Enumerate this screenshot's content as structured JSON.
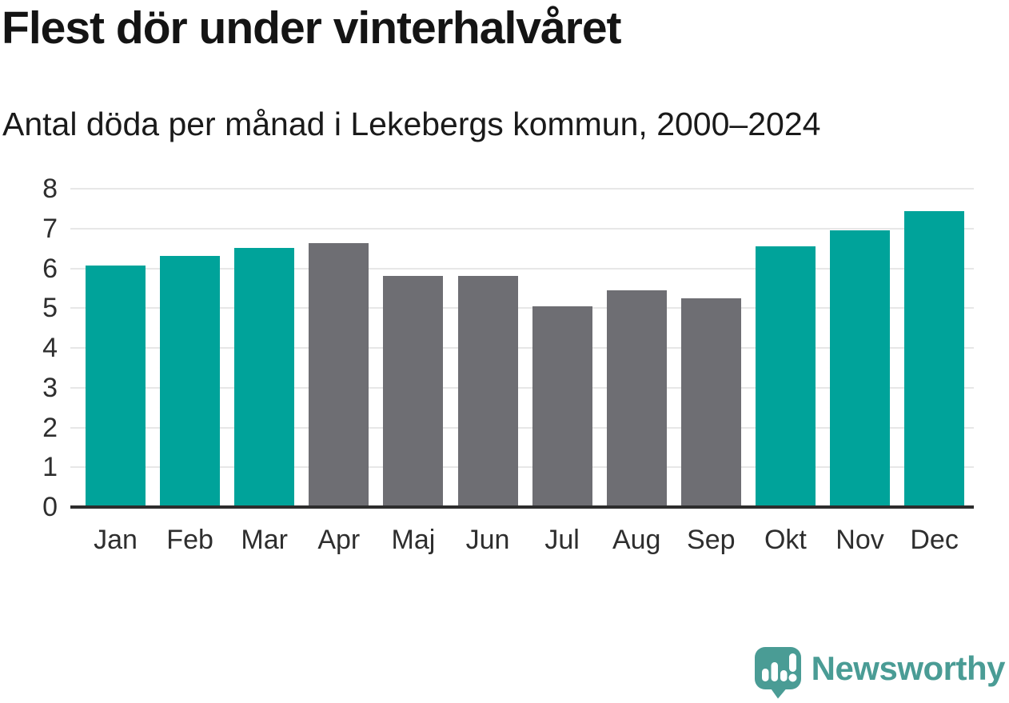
{
  "chart_data": {
    "type": "bar",
    "title": "Flest dör under vinterhalvåret",
    "subtitle": "Antal döda per månad i Lekebergs kommun, 2000–2024",
    "categories": [
      "Jan",
      "Feb",
      "Mar",
      "Apr",
      "Maj",
      "Jun",
      "Jul",
      "Aug",
      "Sep",
      "Okt",
      "Nov",
      "Dec"
    ],
    "values": [
      6.08,
      6.32,
      6.52,
      6.64,
      5.8,
      5.8,
      5.04,
      5.44,
      5.24,
      6.56,
      6.96,
      7.44
    ],
    "bar_groups": [
      "winter",
      "winter",
      "winter",
      "summer",
      "summer",
      "summer",
      "summer",
      "summer",
      "summer",
      "winter",
      "winter",
      "winter"
    ],
    "colors": {
      "winter": "#00a39a",
      "summer": "#6e6e73"
    },
    "xlabel": "",
    "ylabel": "",
    "ylim": [
      0,
      8
    ],
    "yticks": [
      0,
      1,
      2,
      3,
      4,
      5,
      6,
      7,
      8
    ],
    "grid": true,
    "legend": false
  },
  "logo": {
    "text": "Newsworthy",
    "color": "#4a9c95"
  },
  "style": {
    "background": "#ffffff",
    "title_color": "#141414",
    "axis_text_color": "#2e2e2e",
    "gridline_color": "#e7e7e7",
    "axis_line_color": "#2d2d2d"
  }
}
